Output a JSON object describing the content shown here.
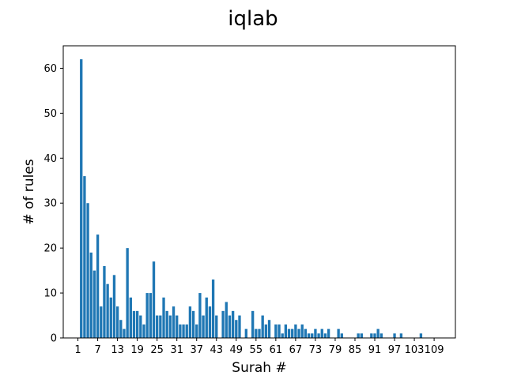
{
  "chart_data": {
    "type": "bar",
    "title": "iqlab",
    "xlabel": "Surah #",
    "ylabel": "# of rules",
    "xlim": [
      -3.45,
      115.45
    ],
    "ylim": [
      0,
      65
    ],
    "x_ticks": [
      1,
      7,
      13,
      19,
      25,
      31,
      37,
      43,
      49,
      55,
      61,
      67,
      73,
      79,
      85,
      91,
      97,
      103,
      109
    ],
    "y_ticks": [
      0,
      10,
      20,
      30,
      40,
      50,
      60
    ],
    "grid": false,
    "bar_color": "#1f77b4",
    "x": [
      2,
      3,
      4,
      5,
      6,
      7,
      8,
      9,
      10,
      11,
      12,
      13,
      14,
      15,
      16,
      17,
      18,
      19,
      20,
      21,
      22,
      23,
      24,
      25,
      26,
      27,
      28,
      29,
      30,
      31,
      32,
      33,
      34,
      35,
      36,
      37,
      38,
      39,
      40,
      41,
      42,
      43,
      44,
      45,
      46,
      47,
      48,
      49,
      50,
      51,
      52,
      53,
      54,
      55,
      56,
      57,
      58,
      59,
      60,
      61,
      62,
      63,
      64,
      65,
      66,
      67,
      68,
      69,
      70,
      71,
      72,
      73,
      74,
      75,
      76,
      77,
      78,
      79,
      80,
      81,
      82,
      83,
      84,
      85,
      86,
      87,
      88,
      89,
      90,
      91,
      92,
      93,
      94,
      95,
      96,
      97,
      98,
      99,
      100,
      101,
      102,
      103,
      104,
      105,
      106,
      107,
      108,
      109,
      110,
      111,
      112,
      113,
      114
    ],
    "values": [
      62,
      36,
      30,
      19,
      15,
      23,
      7,
      16,
      12,
      9,
      14,
      7,
      4,
      2,
      20,
      9,
      6,
      6,
      5,
      3,
      10,
      10,
      17,
      5,
      5,
      9,
      6,
      5,
      7,
      5,
      3,
      3,
      3,
      7,
      6,
      3,
      10,
      5,
      9,
      7,
      13,
      5,
      0,
      6,
      8,
      5,
      6,
      4,
      5,
      0,
      2,
      0,
      6,
      2,
      2,
      5,
      3,
      4,
      0,
      3,
      3,
      1,
      3,
      2,
      2,
      3,
      2,
      3,
      2,
      1,
      1,
      2,
      1,
      2,
      1,
      2,
      0,
      0,
      2,
      1,
      0,
      0,
      0,
      0,
      1,
      1,
      0,
      0,
      1,
      1,
      2,
      1,
      0,
      0,
      0,
      1,
      0,
      1,
      0,
      0,
      0,
      0,
      0,
      1,
      0,
      0,
      0,
      0,
      0,
      0,
      0,
      0,
      0
    ]
  }
}
